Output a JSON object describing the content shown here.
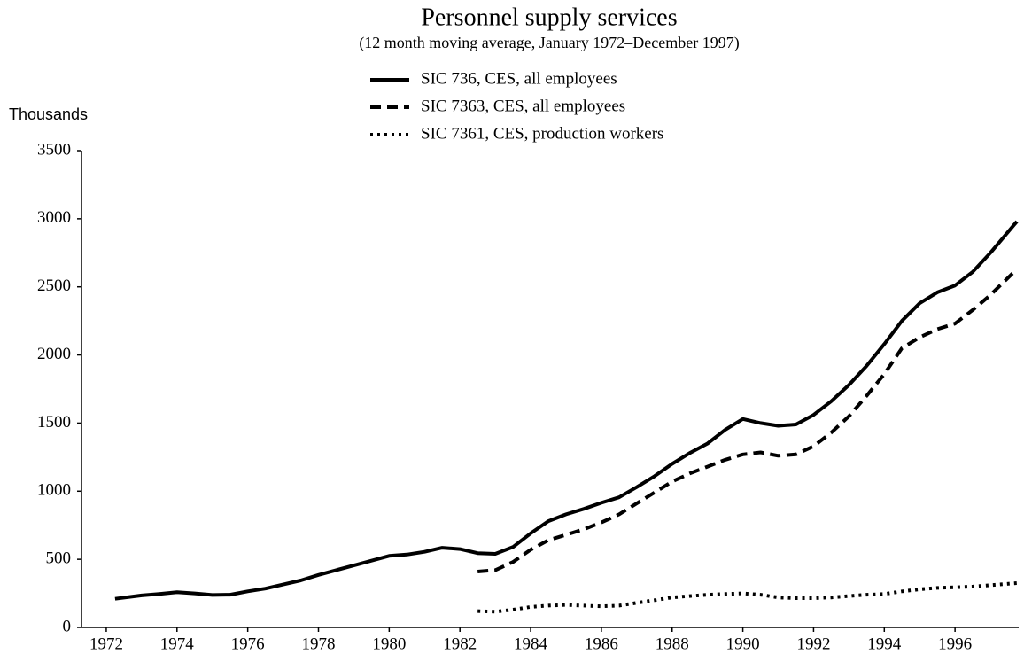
{
  "chart_data": {
    "type": "line",
    "title": "Personnel supply services",
    "subtitle": "(12 month moving average, January 1972–December 1997)",
    "y_label": "Thousands",
    "x": [
      1972.25,
      1973,
      1973.5,
      1974,
      1974.5,
      1975,
      1975.5,
      1976,
      1976.5,
      1977,
      1977.5,
      1978,
      1978.5,
      1979,
      1979.5,
      1980,
      1980.5,
      1981,
      1981.5,
      1982,
      1982.5,
      1983,
      1983.5,
      1984,
      1984.5,
      1985,
      1985.5,
      1986,
      1986.5,
      1987,
      1987.5,
      1988,
      1988.5,
      1989,
      1989.5,
      1990,
      1990.5,
      1991,
      1991.5,
      1992,
      1992.5,
      1993,
      1993.5,
      1994,
      1994.5,
      1995,
      1995.5,
      1996,
      1996.5,
      1997,
      1997.75
    ],
    "series": [
      {
        "name": "SIC 736, CES, all employees",
        "color": "#000000",
        "style": "solid",
        "values": [
          210,
          235,
          245,
          258,
          250,
          238,
          240,
          265,
          285,
          315,
          345,
          385,
          420,
          455,
          490,
          525,
          535,
          555,
          585,
          575,
          545,
          540,
          590,
          690,
          780,
          830,
          870,
          915,
          955,
          1030,
          1110,
          1200,
          1280,
          1350,
          1450,
          1530,
          1500,
          1480,
          1490,
          1560,
          1660,
          1780,
          1920,
          2080,
          2250,
          2380,
          2460,
          2510,
          2610,
          2750,
          2980
        ]
      },
      {
        "name": "SIC 7363, CES, all employees",
        "color": "#000000",
        "style": "dashed",
        "values": [
          null,
          null,
          null,
          null,
          null,
          null,
          null,
          null,
          null,
          null,
          null,
          null,
          null,
          null,
          null,
          null,
          null,
          null,
          null,
          null,
          410,
          420,
          480,
          570,
          640,
          680,
          720,
          770,
          830,
          910,
          990,
          1070,
          1130,
          1180,
          1230,
          1270,
          1285,
          1260,
          1270,
          1330,
          1430,
          1550,
          1700,
          1860,
          2050,
          2130,
          2190,
          2230,
          2330,
          2440,
          2630
        ]
      },
      {
        "name": "SIC 7361, CES, production workers",
        "color": "#000000",
        "style": "dotted",
        "values": [
          null,
          null,
          null,
          null,
          null,
          null,
          null,
          null,
          null,
          null,
          null,
          null,
          null,
          null,
          null,
          null,
          null,
          null,
          null,
          null,
          120,
          115,
          130,
          150,
          160,
          165,
          160,
          155,
          160,
          180,
          200,
          220,
          230,
          240,
          245,
          250,
          240,
          220,
          215,
          215,
          220,
          230,
          240,
          245,
          265,
          280,
          290,
          295,
          300,
          310,
          325
        ]
      }
    ],
    "xlim": [
      1971.3,
      1997.8
    ],
    "xticks": [
      1972,
      1974,
      1976,
      1978,
      1980,
      1982,
      1984,
      1986,
      1988,
      1990,
      1992,
      1994,
      1996
    ],
    "ylim": [
      0,
      3500
    ],
    "yticks": [
      0,
      500,
      1000,
      1500,
      2000,
      2500,
      3000,
      3500
    ]
  }
}
